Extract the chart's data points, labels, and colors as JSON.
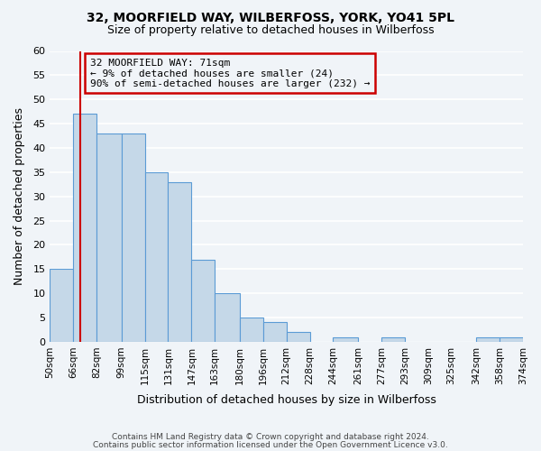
{
  "title": "32, MOORFIELD WAY, WILBERFOSS, YORK, YO41 5PL",
  "subtitle": "Size of property relative to detached houses in Wilberfoss",
  "xlabel": "Distribution of detached houses by size in Wilberfoss",
  "ylabel": "Number of detached properties",
  "bar_color": "#c5d8e8",
  "bar_edge_color": "#5b9bd5",
  "bin_edges": [
    50,
    66,
    82,
    99,
    115,
    131,
    147,
    163,
    180,
    196,
    212,
    228,
    244,
    261,
    277,
    293,
    309,
    325,
    342,
    358,
    374
  ],
  "bin_labels": [
    "50sqm",
    "66sqm",
    "82sqm",
    "99sqm",
    "115sqm",
    "131sqm",
    "147sqm",
    "163sqm",
    "180sqm",
    "196sqm",
    "212sqm",
    "228sqm",
    "244sqm",
    "261sqm",
    "277sqm",
    "293sqm",
    "309sqm",
    "325sqm",
    "342sqm",
    "358sqm",
    "374sqm"
  ],
  "counts": [
    15,
    47,
    43,
    43,
    35,
    33,
    17,
    10,
    5,
    4,
    2,
    0,
    1,
    0,
    1,
    0,
    0,
    0,
    1,
    1
  ],
  "property_line_x": 71,
  "property_line_color": "#cc0000",
  "annotation_title": "32 MOORFIELD WAY: 71sqm",
  "annotation_line1": "← 9% of detached houses are smaller (24)",
  "annotation_line2": "90% of semi-detached houses are larger (232) →",
  "annotation_box_color": "#cc0000",
  "ylim": [
    0,
    60
  ],
  "yticks": [
    0,
    5,
    10,
    15,
    20,
    25,
    30,
    35,
    40,
    45,
    50,
    55,
    60
  ],
  "footer_line1": "Contains HM Land Registry data © Crown copyright and database right 2024.",
  "footer_line2": "Contains public sector information licensed under the Open Government Licence v3.0.",
  "background_color": "#f0f4f8",
  "grid_color": "#ffffff"
}
